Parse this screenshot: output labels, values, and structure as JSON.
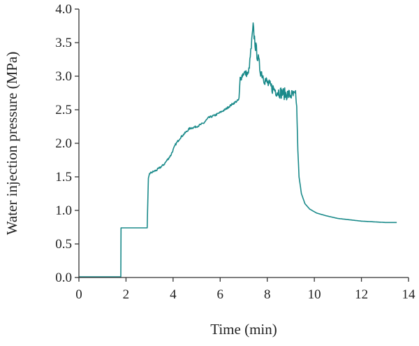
{
  "chart_data": {
    "type": "line",
    "title": "",
    "xlabel": "Time (min)",
    "ylabel": "Water injection pressure (MPa)",
    "xlim": [
      0,
      14
    ],
    "ylim": [
      0,
      4
    ],
    "xticks": [
      0,
      2,
      4,
      6,
      8,
      10,
      12,
      14
    ],
    "xtick_labels": [
      "0",
      "2",
      "4",
      "6",
      "8",
      "10",
      "12",
      "14"
    ],
    "yticks": [
      0,
      0.5,
      1,
      1.5,
      2,
      2.5,
      3,
      3.5,
      4
    ],
    "ytick_labels": [
      "0.0",
      "0.5",
      "1.0",
      "1.5",
      "2.0",
      "2.5",
      "3.0",
      "3.5",
      "4.0"
    ],
    "grid": false,
    "legend": "none",
    "color": "#1a8a8a",
    "series": [
      {
        "points": [
          [
            0,
            0.01
          ],
          [
            1.78,
            0.01
          ],
          [
            1.79,
            0.74
          ],
          [
            2.9,
            0.74
          ],
          [
            2.95,
            1.48
          ],
          [
            3.0,
            1.55
          ],
          [
            3.3,
            1.6
          ],
          [
            3.6,
            1.68
          ],
          [
            3.9,
            1.82
          ],
          [
            4.1,
            1.98
          ],
          [
            4.3,
            2.08
          ],
          [
            4.5,
            2.15
          ],
          [
            4.7,
            2.22
          ],
          [
            5.0,
            2.25
          ],
          [
            5.3,
            2.3
          ],
          [
            5.5,
            2.38
          ],
          [
            5.8,
            2.42
          ],
          [
            6.2,
            2.5
          ],
          [
            6.5,
            2.58
          ],
          [
            6.8,
            2.65
          ],
          [
            6.85,
            2.96
          ],
          [
            7.0,
            3.05
          ],
          [
            7.2,
            3.03
          ],
          [
            7.3,
            3.35
          ],
          [
            7.4,
            3.72
          ],
          [
            7.5,
            3.45
          ],
          [
            7.7,
            3.1
          ],
          [
            7.9,
            2.95
          ],
          [
            8.1,
            2.85
          ],
          [
            8.4,
            2.78
          ],
          [
            8.7,
            2.74
          ],
          [
            9.0,
            2.72
          ],
          [
            9.2,
            2.7
          ],
          [
            9.25,
            2.55
          ],
          [
            9.3,
            1.9
          ],
          [
            9.35,
            1.5
          ],
          [
            9.45,
            1.25
          ],
          [
            9.6,
            1.1
          ],
          [
            9.8,
            1.02
          ],
          [
            10.1,
            0.96
          ],
          [
            10.5,
            0.92
          ],
          [
            11.0,
            0.88
          ],
          [
            11.5,
            0.86
          ],
          [
            12.0,
            0.84
          ],
          [
            12.5,
            0.83
          ],
          [
            13.0,
            0.82
          ],
          [
            13.5,
            0.82
          ]
        ]
      }
    ]
  }
}
